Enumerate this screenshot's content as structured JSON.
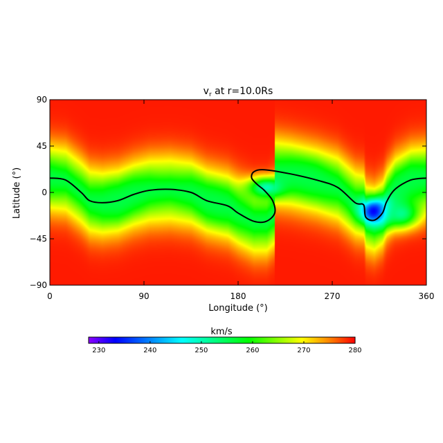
{
  "chart_data": {
    "type": "heatmap",
    "title": "v",
    "title_sub": "r",
    "title_rest": " at r=10.0Rs",
    "xlabel": "Longitude (°)",
    "ylabel": "Latitude (°)",
    "xlim": [
      0,
      360
    ],
    "ylim": [
      -90,
      90
    ],
    "xticks": [
      0,
      90,
      180,
      270,
      360
    ],
    "yticks": [
      90,
      45,
      0,
      -45,
      -90
    ],
    "xtick_labels": [
      "0",
      "90",
      "180",
      "270",
      "360"
    ],
    "ytick_labels": [
      "90",
      "45",
      "0",
      "−45",
      "−90"
    ],
    "colorbar": {
      "label": "km/s",
      "range": [
        228,
        280
      ],
      "ticks": [
        230,
        240,
        250,
        260,
        270,
        280
      ],
      "tick_labels": [
        "230",
        "240",
        "250",
        "260",
        "270",
        "280"
      ],
      "colormap": "rainbow"
    },
    "neutral_line": [
      [
        0,
        14
      ],
      [
        15,
        12
      ],
      [
        30,
        0
      ],
      [
        38,
        -8
      ],
      [
        50,
        -10
      ],
      [
        65,
        -8
      ],
      [
        80,
        -2
      ],
      [
        95,
        2
      ],
      [
        115,
        3
      ],
      [
        135,
        0
      ],
      [
        150,
        -8
      ],
      [
        170,
        -13
      ],
      [
        180,
        -20
      ],
      [
        195,
        -28
      ],
      [
        207,
        -28
      ],
      [
        215,
        -20
      ],
      [
        213,
        -8
      ],
      [
        205,
        2
      ],
      [
        198,
        8
      ],
      [
        193,
        14
      ],
      [
        195,
        20
      ],
      [
        205,
        22
      ],
      [
        230,
        18
      ],
      [
        255,
        12
      ],
      [
        275,
        5
      ],
      [
        292,
        -10
      ],
      [
        300,
        -12
      ],
      [
        302,
        -24
      ],
      [
        310,
        -27
      ],
      [
        318,
        -20
      ],
      [
        322,
        -9
      ],
      [
        330,
        3
      ],
      [
        345,
        12
      ],
      [
        360,
        14
      ]
    ],
    "features": [
      {
        "lon": 311,
        "lat": -18,
        "v": 230,
        "radius_lon": 14,
        "radius_lat": 12
      },
      {
        "lon": 207,
        "lat": 5,
        "v": 250,
        "radius_lon": 18,
        "radius_lat": 10
      },
      {
        "lon": 335,
        "lat": -20,
        "v": 252,
        "radius_lon": 18,
        "radius_lat": 14
      }
    ]
  }
}
